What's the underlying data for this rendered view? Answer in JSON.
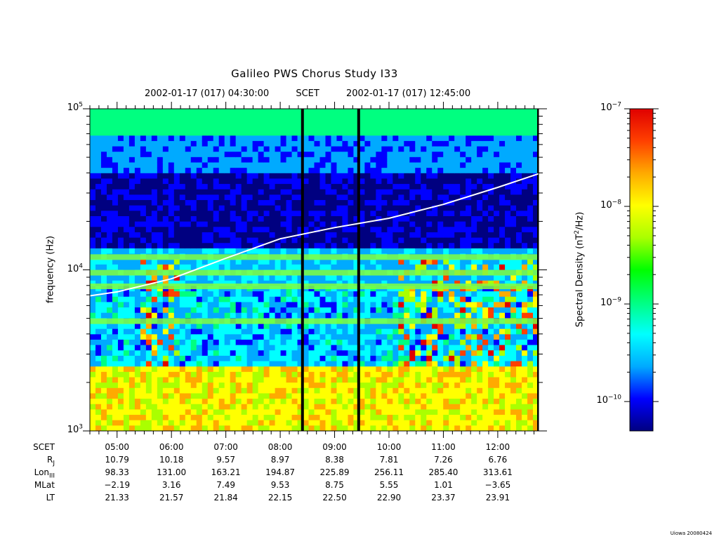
{
  "chart_data": {
    "type": "heatmap",
    "title": "Galileo PWS Chorus Study  I33",
    "time_start": "2002-01-17 (017) 04:30:00",
    "time_mid_label": "SCET",
    "time_end": "2002-01-17 (017) 12:45:00",
    "xlim": [
      "04:30",
      "12:45"
    ],
    "x_ticks": [
      "05:00",
      "06:00",
      "07:00",
      "08:00",
      "09:00",
      "10:00",
      "11:00",
      "12:00"
    ],
    "ylabel": "frequency (Hz)",
    "yscale": "log",
    "ylim": [
      1000,
      100000
    ],
    "y_ticks": [
      {
        "base": "10",
        "exp": "3"
      },
      {
        "base": "10",
        "exp": "4"
      },
      {
        "base": "10",
        "exp": "5"
      }
    ],
    "colorbar": {
      "label_prefix": "Spectral Density (nT",
      "label_exp": "2",
      "label_suffix": "/Hz)",
      "scale": "log",
      "range": [
        5e-11,
        1e-07
      ],
      "ticks": [
        {
          "base": "10",
          "exp": "−7"
        },
        {
          "base": "10",
          "exp": "−8"
        },
        {
          "base": "10",
          "exp": "−9"
        },
        {
          "base": "10",
          "exp": "−10"
        }
      ],
      "colors": [
        "#000080",
        "#0000ff",
        "#00aaff",
        "#00ffff",
        "#00ff80",
        "#00ff00",
        "#aaff00",
        "#ffff00",
        "#ffaa00",
        "#ff4000",
        "#e00000"
      ]
    },
    "white_curve": {
      "x": [
        "04:30",
        "05:00",
        "06:00",
        "07:00",
        "08:00",
        "09:00",
        "10:00",
        "11:00",
        "12:00",
        "12:45"
      ],
      "y": [
        6900,
        7300,
        8800,
        11800,
        15600,
        18300,
        20900,
        25500,
        32500,
        39500
      ]
    },
    "data_gaps": [
      [
        "08:23",
        "08:25"
      ],
      [
        "09:25",
        "09:27"
      ]
    ]
  },
  "ephemeris": {
    "rows": [
      {
        "name": "SCET",
        "sub": "",
        "values": [
          "05:00",
          "06:00",
          "07:00",
          "08:00",
          "09:00",
          "10:00",
          "11:00",
          "12:00"
        ]
      },
      {
        "name": "R",
        "sub": "J",
        "values": [
          "10.79",
          "10.18",
          "9.57",
          "8.97",
          "8.38",
          "7.81",
          "7.26",
          "6.76"
        ]
      },
      {
        "name": "Lon",
        "sub": "III",
        "values": [
          "98.33",
          "131.00",
          "163.21",
          "194.87",
          "225.89",
          "256.11",
          "285.40",
          "313.61"
        ]
      },
      {
        "name": "MLat",
        "sub": "",
        "values": [
          "−2.19",
          "3.16",
          "7.49",
          "9.53",
          "8.75",
          "5.55",
          "1.01",
          "−3.65"
        ]
      },
      {
        "name": "LT",
        "sub": "",
        "values": [
          "21.33",
          "21.57",
          "21.84",
          "22.15",
          "22.50",
          "22.90",
          "23.37",
          "23.91"
        ]
      }
    ]
  },
  "credit": "Uiowa 20080424"
}
